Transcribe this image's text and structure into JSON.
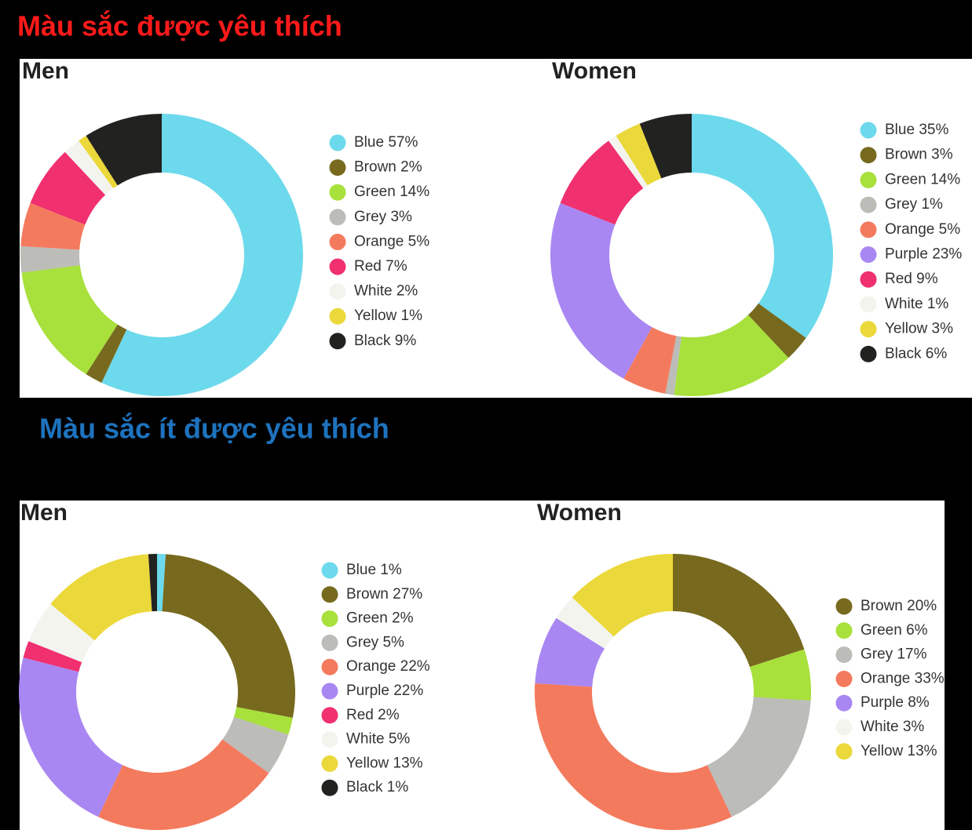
{
  "headings": {
    "favorite": "Màu sắc được yêu thích",
    "least_favorite": "Màu sắc ít được yêu thích"
  },
  "chart_data": [
    {
      "type": "pie",
      "donut": true,
      "title": "Men",
      "categories": [
        "Blue",
        "Brown",
        "Green",
        "Grey",
        "Orange",
        "Red",
        "White",
        "Yellow",
        "Black"
      ],
      "values": [
        57,
        2,
        14,
        3,
        5,
        7,
        2,
        1,
        9
      ],
      "value_labels": [
        "57%",
        "2%",
        "14%",
        "3%",
        "5%",
        "7%",
        "2%",
        "1%",
        "9%"
      ],
      "colors": [
        "#6dd9ec",
        "#776a1e",
        "#a8e03c",
        "#bcbcb8",
        "#f47a5e",
        "#f0306f",
        "#f4f4ef",
        "#ebd83a",
        "#222220"
      ]
    },
    {
      "type": "pie",
      "donut": true,
      "title": "Women",
      "categories": [
        "Blue",
        "Brown",
        "Green",
        "Grey",
        "Orange",
        "Purple",
        "Red",
        "White",
        "Yellow",
        "Black"
      ],
      "values": [
        35,
        3,
        14,
        1,
        5,
        23,
        9,
        1,
        3,
        6
      ],
      "value_labels": [
        "35%",
        "3%",
        "14%",
        "1%",
        "5%",
        "23%",
        "9%",
        "1%",
        "3%",
        "6%"
      ],
      "colors": [
        "#6dd9ec",
        "#776a1e",
        "#a8e03c",
        "#bcbcb8",
        "#f47a5e",
        "#a987f2",
        "#f0306f",
        "#f4f4ef",
        "#ebd83a",
        "#222220"
      ]
    },
    {
      "type": "pie",
      "donut": true,
      "title": "Men",
      "categories": [
        "Blue",
        "Brown",
        "Green",
        "Grey",
        "Orange",
        "Purple",
        "Red",
        "White",
        "Yellow",
        "Black"
      ],
      "values": [
        1,
        27,
        2,
        5,
        22,
        22,
        2,
        5,
        13,
        1
      ],
      "value_labels": [
        "1%",
        "27%",
        "2%",
        "5%",
        "22%",
        "22%",
        "2%",
        "5%",
        "13%",
        "1%"
      ],
      "colors": [
        "#6dd9ec",
        "#776a1e",
        "#a8e03c",
        "#bcbcb8",
        "#f47a5e",
        "#a987f2",
        "#f0306f",
        "#f4f4ef",
        "#ebd83a",
        "#222220"
      ]
    },
    {
      "type": "pie",
      "donut": true,
      "title": "Women",
      "categories": [
        "Brown",
        "Green",
        "Grey",
        "Orange",
        "Purple",
        "White",
        "Yellow"
      ],
      "values": [
        20,
        6,
        17,
        33,
        8,
        3,
        13
      ],
      "value_labels": [
        "20%",
        "6%",
        "17%",
        "33%",
        "8%",
        "3%",
        "13%"
      ],
      "colors": [
        "#776a1e",
        "#a8e03c",
        "#bcbcb8",
        "#f47a5e",
        "#a987f2",
        "#f4f4ef",
        "#ebd83a"
      ]
    }
  ]
}
